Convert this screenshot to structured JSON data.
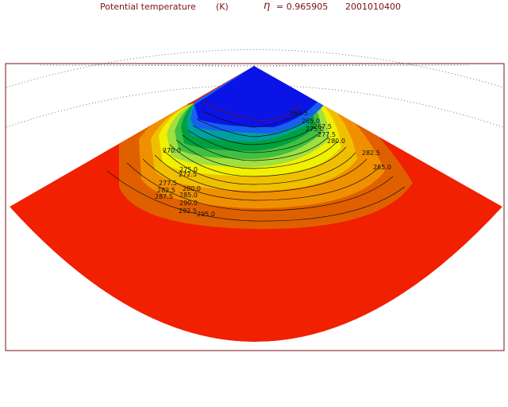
{
  "title": {
    "field": "Potential temperature",
    "units": "(K)",
    "eta_symbol": "η",
    "eta_value": "= 0.965905",
    "datetime": "2001010400"
  },
  "colors": {
    "frame": "#7a1010",
    "graticule": "#555555",
    "bands": [
      "#0a14e6",
      "#1560f0",
      "#00a0a0",
      "#00a040",
      "#40c040",
      "#a0e040",
      "#f0f000",
      "#f0c000",
      "#f09000",
      "#e06000",
      "#f02000"
    ]
  },
  "contour_labels": [
    "270.0",
    "272.5",
    "275.0",
    "277.5",
    "280.0",
    "282.5",
    "285.0",
    "287.5",
    "290.0",
    "292.5",
    "295.0",
    "275.0",
    "277.5",
    "280.0",
    "282.5",
    "285.0",
    "262.5",
    "265.0",
    "267.5"
  ]
}
